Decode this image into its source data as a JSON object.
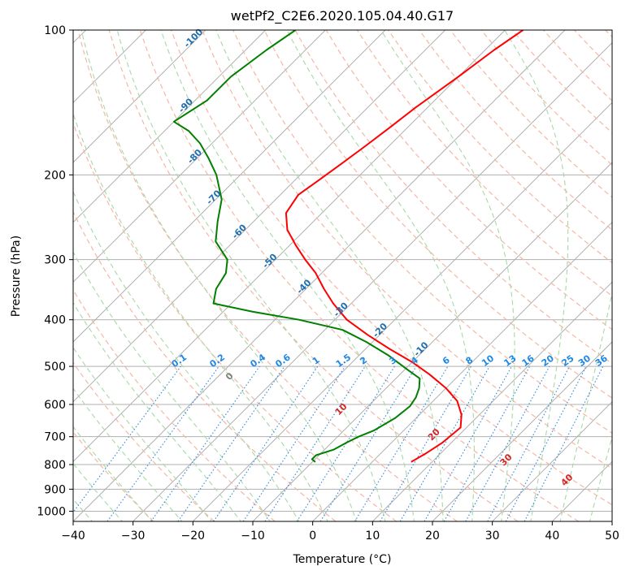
{
  "chart_data": {
    "type": "line",
    "title": "wetPf2_C2E6.2020.105.04.40.G17",
    "xlabel": "Temperature (°C)",
    "ylabel": "Pressure (hPa)",
    "xlim": [
      -40,
      50
    ],
    "ylim": [
      1050,
      100
    ],
    "y_scale": "log",
    "grid": true,
    "x_ticks": [
      -40,
      -30,
      -20,
      -10,
      0,
      10,
      20,
      30,
      40,
      50
    ],
    "y_ticks": [
      100,
      200,
      300,
      400,
      500,
      600,
      700,
      800,
      900,
      1000
    ],
    "series": [
      {
        "name": "",
        "color": "#ff0000",
        "points": [
          [
            -47,
            100
          ],
          [
            -48.5,
            110
          ],
          [
            -50,
            125
          ],
          [
            -52,
            145
          ],
          [
            -53,
            160
          ],
          [
            -54,
            175
          ],
          [
            -55,
            190
          ],
          [
            -56,
            205
          ],
          [
            -57,
            220
          ],
          [
            -56,
            240
          ],
          [
            -53,
            260
          ],
          [
            -49,
            280
          ],
          [
            -45,
            300
          ],
          [
            -41,
            320
          ],
          [
            -37,
            345
          ],
          [
            -33,
            370
          ],
          [
            -28,
            400
          ],
          [
            -22,
            430
          ],
          [
            -16,
            460
          ],
          [
            -10,
            490
          ],
          [
            -5,
            520
          ],
          [
            0,
            555
          ],
          [
            4,
            590
          ],
          [
            7,
            630
          ],
          [
            9,
            670
          ],
          [
            8.5,
            720
          ],
          [
            7.5,
            760
          ],
          [
            6.5,
            790
          ]
        ]
      },
      {
        "name": "",
        "color": "#008000",
        "points": [
          [
            -85,
            100
          ],
          [
            -86.5,
            110
          ],
          [
            -88,
            125
          ],
          [
            -88,
            140
          ],
          [
            -90,
            155
          ],
          [
            -86,
            162
          ],
          [
            -82,
            172
          ],
          [
            -78,
            185
          ],
          [
            -74,
            200
          ],
          [
            -69,
            225
          ],
          [
            -66,
            250
          ],
          [
            -63,
            275
          ],
          [
            -58,
            300
          ],
          [
            -56,
            320
          ],
          [
            -55,
            345
          ],
          [
            -53,
            370
          ],
          [
            -45,
            385
          ],
          [
            -36,
            400
          ],
          [
            -27,
            420
          ],
          [
            -21,
            445
          ],
          [
            -15,
            475
          ],
          [
            -10,
            505
          ],
          [
            -6,
            530
          ],
          [
            -4.5,
            555
          ],
          [
            -3.5,
            580
          ],
          [
            -3,
            605
          ],
          [
            -3.5,
            640
          ],
          [
            -5,
            680
          ],
          [
            -6.5,
            700
          ],
          [
            -7.5,
            720
          ],
          [
            -8.5,
            745
          ],
          [
            -10.5,
            765
          ],
          [
            -10.5,
            780
          ],
          [
            -9.5,
            790
          ]
        ]
      }
    ],
    "mixing_ratio_labels": [
      "0.1",
      "0.2",
      "0.4",
      "0.6",
      "1",
      "1.5",
      "2",
      "3",
      "4",
      "6",
      "8",
      "10",
      "13",
      "16",
      "20",
      "25",
      "30",
      "36"
    ],
    "mixing_ratio_values": [
      0.1,
      0.2,
      0.4,
      0.6,
      1,
      1.5,
      2,
      3,
      4,
      6,
      8,
      10,
      13,
      16,
      20,
      25,
      30,
      36
    ],
    "dry_adiabat_labels": [
      "-100",
      "-90",
      "-80",
      "-70",
      "-60",
      "-50",
      "-40",
      "-30",
      "-20",
      "-10"
    ],
    "dry_adiabat_values": [
      -100,
      -90,
      -80,
      -70,
      -60,
      -50,
      -40,
      -30,
      -20,
      -10
    ],
    "moist_adiabat_labels": [
      "0",
      "10",
      "20",
      "30",
      "40"
    ],
    "moist_adiabat_values": [
      0,
      10,
      20,
      30,
      40
    ],
    "colors": {
      "isotherm": "#b0b0b0",
      "isobar": "#b0b0b0",
      "dry_adiabat": "#f5b7a5",
      "moist_adiabat": "#a8d8a8",
      "mixing_ratio": "#3c8fe0",
      "dry_label": "#1f6fb0",
      "mix_label": "#1e88e5",
      "moist_label": "#d62728",
      "zero_label": "#808080"
    }
  }
}
